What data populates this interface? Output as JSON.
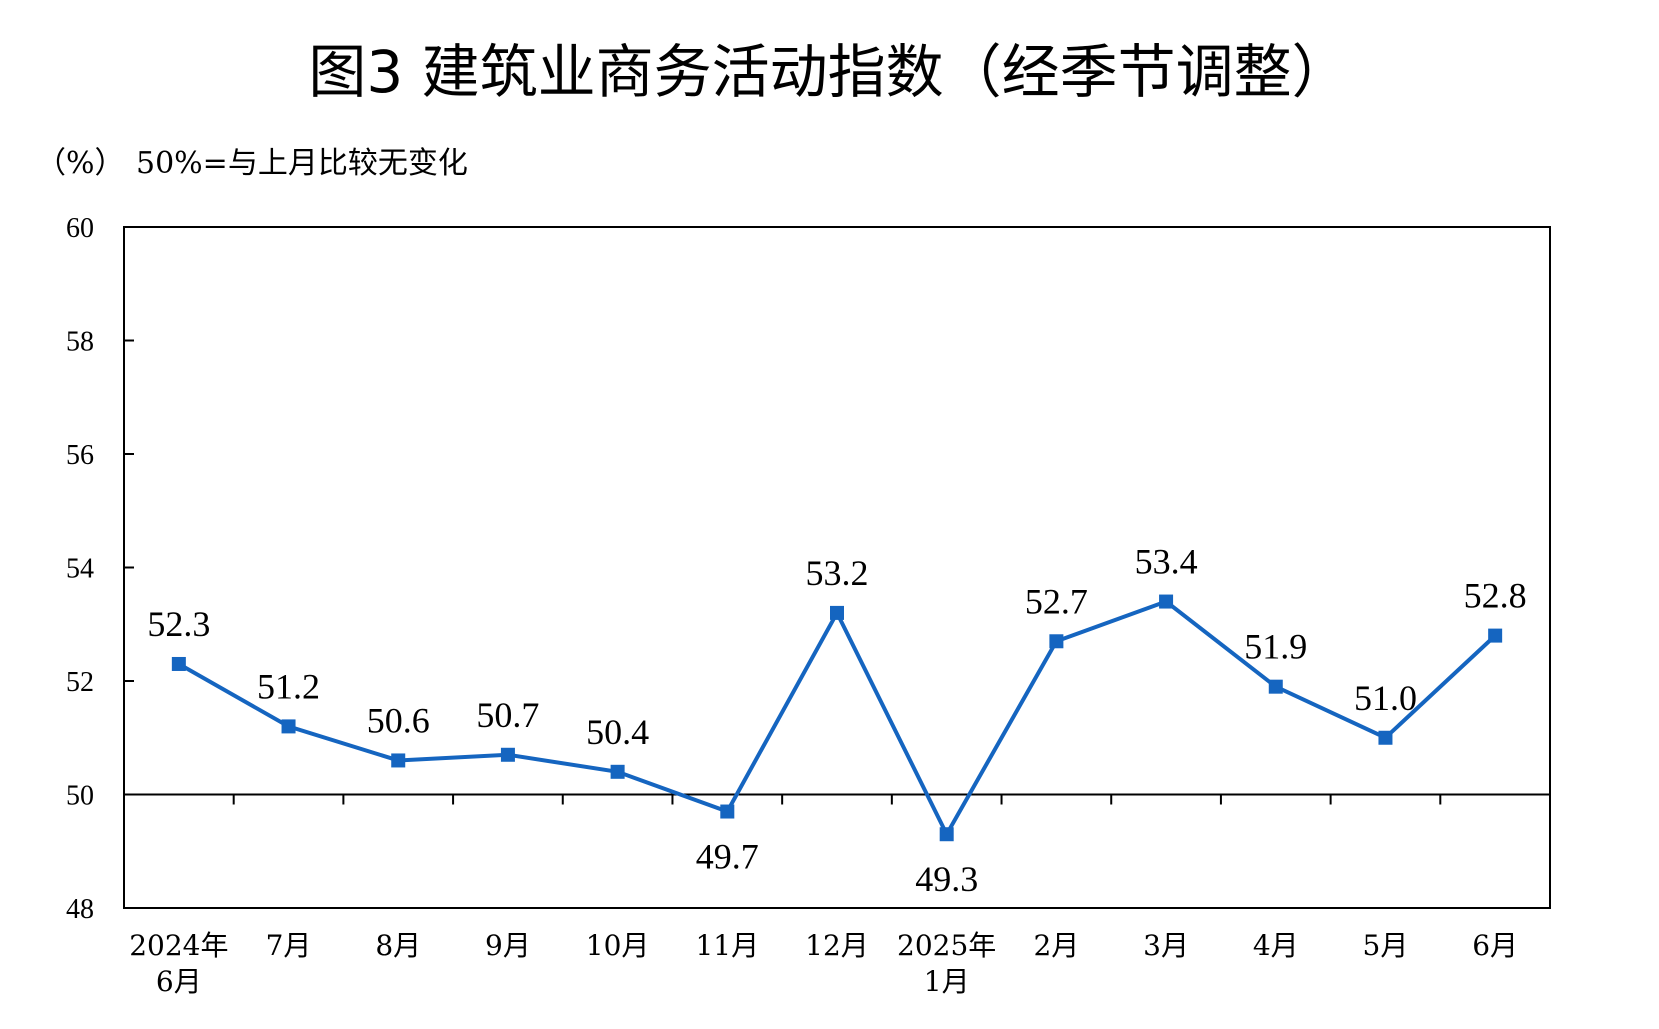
{
  "title": "图3  建筑业商务活动指数（经季节调整）",
  "unit_label": "（%）",
  "note": "50%=与上月比较无变化",
  "colors": {
    "series": "#1565C0",
    "axis": "#000000",
    "background": "#ffffff"
  },
  "chart_data": {
    "type": "line",
    "title": "图3  建筑业商务活动指数（经季节调整）",
    "ylabel": "（%）",
    "xlabel": "",
    "ylim": [
      48,
      60
    ],
    "yticks": [
      48,
      50,
      52,
      54,
      56,
      58,
      60
    ],
    "reference_line": 50,
    "grid": false,
    "legend": "none",
    "x": [
      [
        "2024年",
        "6月"
      ],
      [
        "7月"
      ],
      [
        "8月"
      ],
      [
        "9月"
      ],
      [
        "10月"
      ],
      [
        "11月"
      ],
      [
        "12月"
      ],
      [
        "2025年",
        "1月"
      ],
      [
        "2月"
      ],
      [
        "3月"
      ],
      [
        "4月"
      ],
      [
        "5月"
      ],
      [
        "6月"
      ]
    ],
    "series": [
      {
        "values": [
          52.3,
          51.2,
          50.6,
          50.7,
          50.4,
          49.7,
          53.2,
          49.3,
          52.7,
          53.4,
          51.9,
          51.0,
          52.8
        ],
        "labels": [
          "52.3",
          "51.2",
          "50.6",
          "50.7",
          "50.4",
          "49.7",
          "53.2",
          "49.3",
          "52.7",
          "53.4",
          "51.9",
          "51.0",
          "52.8"
        ]
      }
    ]
  }
}
